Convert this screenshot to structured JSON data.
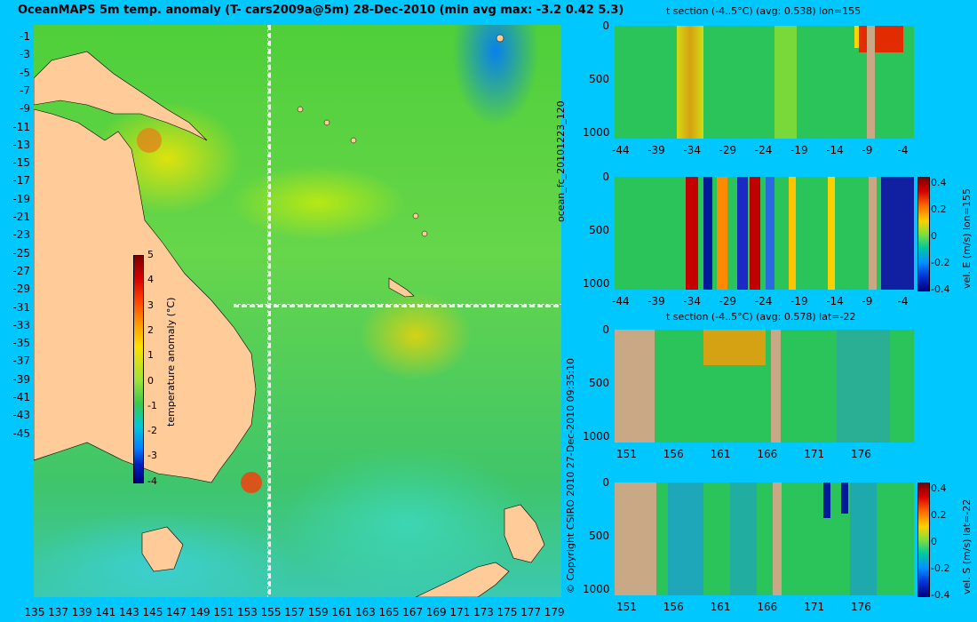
{
  "title": "OceanMAPS 5m temp. anomaly (T- cars2009a@5m) 28-Dec-2010 (min avg max: -3.2 0.42 5.3)",
  "map": {
    "lat_ticks": [
      "-1",
      "-3",
      "-5",
      "-7",
      "-9",
      "-11",
      "-13",
      "-15",
      "-17",
      "-19",
      "-21",
      "-23",
      "-25",
      "-27",
      "-29",
      "-31",
      "-33",
      "-35",
      "-37",
      "-39",
      "-41",
      "-43",
      "-45"
    ],
    "lon_ticks": [
      "135",
      "137",
      "139",
      "141",
      "143",
      "145",
      "147",
      "149",
      "151",
      "153",
      "155",
      "157",
      "159",
      "161",
      "163",
      "165",
      "167",
      "169",
      "171",
      "173",
      "175",
      "177",
      "179"
    ],
    "colorbar": {
      "ticks": [
        "5",
        "4",
        "3",
        "2",
        "1",
        "0",
        "-1",
        "-2",
        "-3",
        "-4"
      ],
      "label": "temperature anomaly (°C)"
    },
    "copyright": "© Copyright CSIRO 2010   27-Dec-2010 09:35:10",
    "run_label": "ocean_fc_20101223_120"
  },
  "panels": [
    {
      "title": "t section (-4..5°C) (avg: 0.538) lon=155",
      "x_ticks": [
        "-44",
        "-39",
        "-34",
        "-29",
        "-24",
        "-19",
        "-14",
        "-9",
        "-4"
      ],
      "y_ticks": [
        "0",
        "500",
        "1000"
      ]
    },
    {
      "title": "",
      "x_ticks": [
        "-44",
        "-39",
        "-34",
        "-29",
        "-24",
        "-19",
        "-14",
        "-9",
        "-4"
      ],
      "y_ticks": [
        "0",
        "500",
        "1000"
      ],
      "colorbar_ticks": [
        "0.4",
        "0.2",
        "0",
        "-0.2",
        "-0.4"
      ],
      "colorbar_label": "vel. E (m/s) lon=155"
    },
    {
      "title": "t section (-4..5°C) (avg: 0.578) lat=-22",
      "x_ticks": [
        "151",
        "156",
        "161",
        "166",
        "171",
        "176"
      ],
      "y_ticks": [
        "0",
        "500",
        "1000"
      ]
    },
    {
      "title": "",
      "x_ticks": [
        "151",
        "156",
        "161",
        "166",
        "171",
        "176"
      ],
      "y_ticks": [
        "0",
        "500",
        "1000"
      ],
      "colorbar_ticks": [
        "0.4",
        "0.2",
        "0",
        "-0.2",
        "-0.4"
      ],
      "colorbar_label": "vel. S (m/s) lat=-22"
    }
  ],
  "colors": {
    "background": "#00c8ff",
    "land": "#ffcb99",
    "section_land": "#c8a885"
  }
}
